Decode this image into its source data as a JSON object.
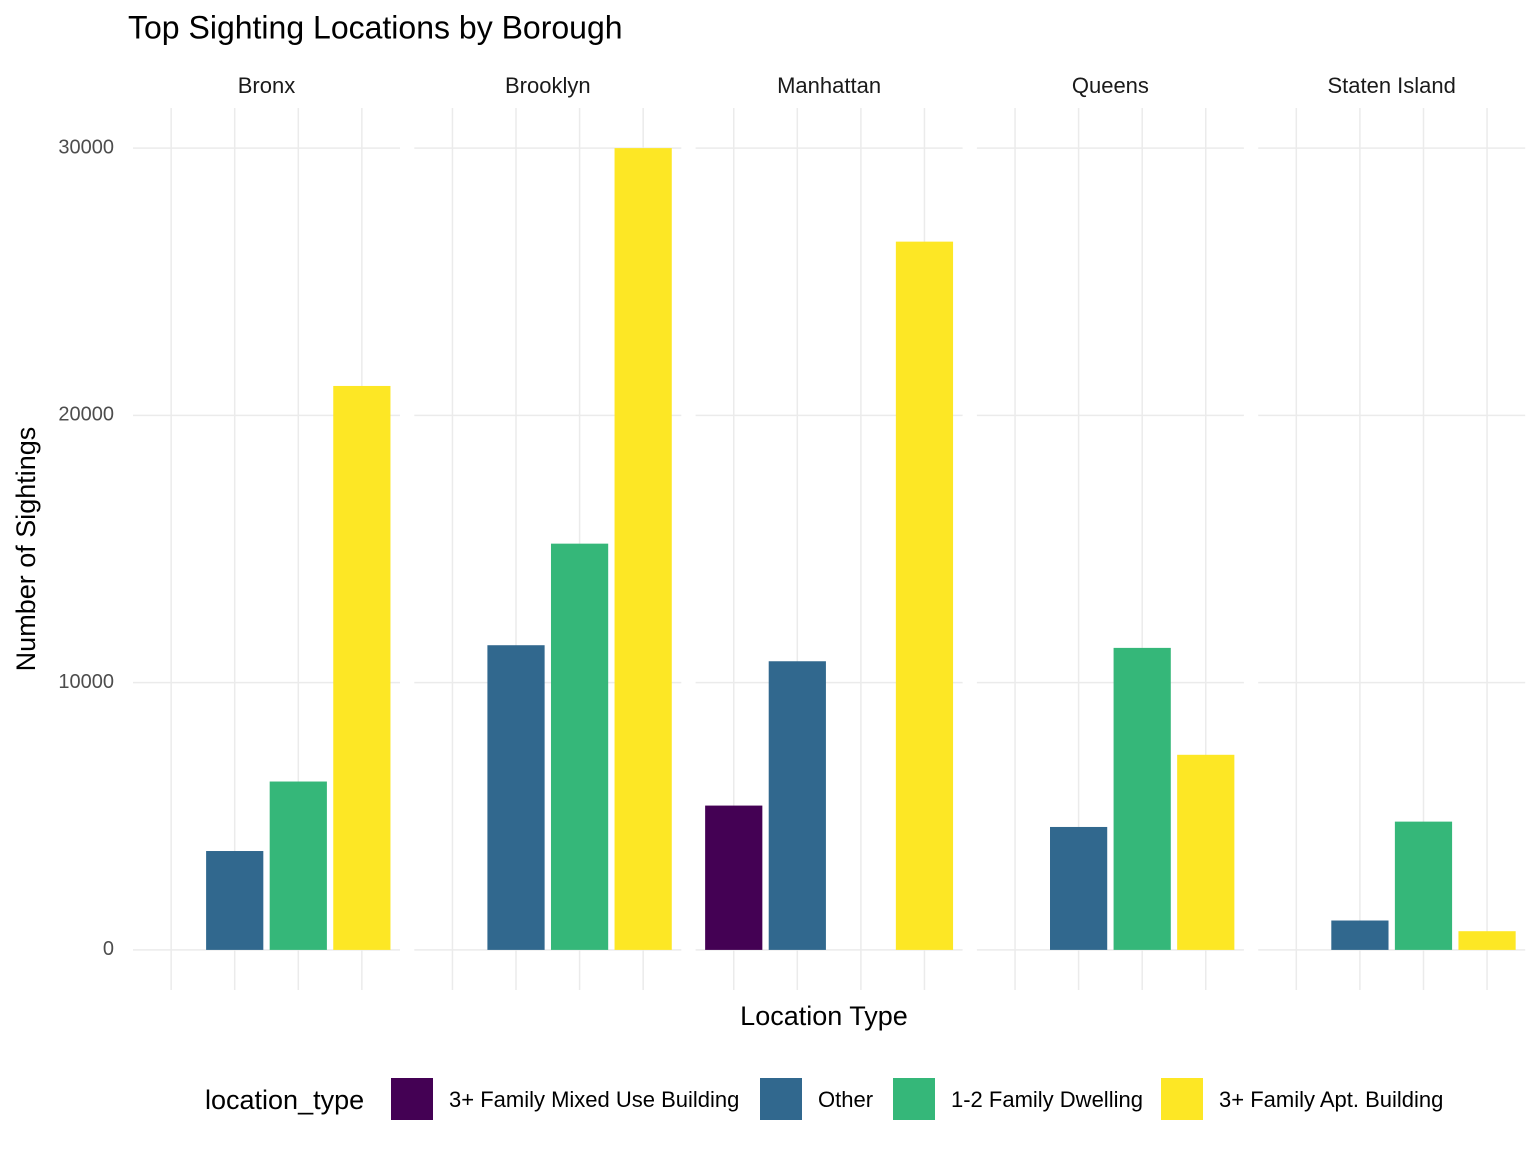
{
  "chart_data": {
    "type": "bar",
    "title": "Top Sighting Locations by Borough",
    "xlabel": "Location Type",
    "ylabel": "Number of Sightings",
    "facets": [
      "Bronx",
      "Brooklyn",
      "Manhattan",
      "Queens",
      "Staten Island"
    ],
    "legend_title": "location_type",
    "series": [
      {
        "name": "3+ Family Mixed Use Building",
        "color": "#440154",
        "values": [
          null,
          null,
          5400,
          null,
          null
        ]
      },
      {
        "name": "Other",
        "color": "#31688e",
        "values": [
          3700,
          11400,
          10800,
          4600,
          1100
        ]
      },
      {
        "name": "1-2 Family Dwelling",
        "color": "#35b779",
        "values": [
          6300,
          15200,
          null,
          11300,
          4800
        ]
      },
      {
        "name": "3+ Family Apt. Building",
        "color": "#fde725",
        "values": [
          21100,
          30000,
          26500,
          7300,
          700
        ]
      }
    ],
    "ylim": [
      -1500,
      31500
    ],
    "yticks": [
      0,
      10000,
      20000,
      30000
    ],
    "grid": true,
    "legend": "bottom"
  }
}
